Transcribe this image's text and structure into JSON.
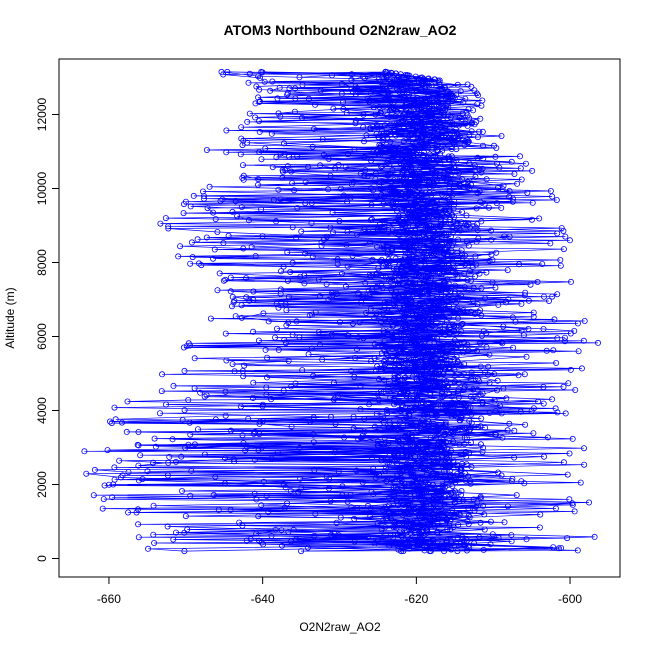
{
  "chart_data": {
    "type": "line",
    "title": "ATOM3 Northbound O2N2raw_AO2",
    "xlabel": "O2N2raw_AO2",
    "ylabel": "Altitude (m)",
    "xlim": [
      -666.5,
      -593.5
    ],
    "ylim": [
      -500,
      13500
    ],
    "x_ticks": [
      -660,
      -640,
      -620,
      -600
    ],
    "y_ticks": [
      0,
      2000,
      4000,
      6000,
      8000,
      10000,
      12000
    ],
    "x_tick_labels": [
      "-660",
      "-640",
      "-620",
      "-600"
    ],
    "y_tick_labels": [
      "0",
      "2000",
      "4000",
      "6000",
      "8000",
      "10000",
      "12000"
    ],
    "grid": false,
    "legend": "none",
    "series_color": "#0000ff",
    "marker": "open-circle",
    "envelope": [
      {
        "y": 200,
        "x_min": -655,
        "x_max": -596
      },
      {
        "y": 1000,
        "x_min": -660,
        "x_max": -597
      },
      {
        "y": 2200,
        "x_min": -664,
        "x_max": -598
      },
      {
        "y": 3300,
        "x_min": -664,
        "x_max": -598
      },
      {
        "y": 4000,
        "x_min": -660,
        "x_max": -600
      },
      {
        "y": 5000,
        "x_min": -654,
        "x_max": -598
      },
      {
        "y": 6000,
        "x_min": -649,
        "x_max": -596
      },
      {
        "y": 7000,
        "x_min": -646,
        "x_max": -600
      },
      {
        "y": 8500,
        "x_min": -654,
        "x_max": -599
      },
      {
        "y": 9700,
        "x_min": -653,
        "x_max": -601
      },
      {
        "y": 10500,
        "x_min": -642,
        "x_max": -603
      },
      {
        "y": 11100,
        "x_min": -648,
        "x_max": -608
      },
      {
        "y": 12000,
        "x_min": -642,
        "x_max": -610
      },
      {
        "y": 12800,
        "x_min": -641,
        "x_max": -613
      },
      {
        "y": 13150,
        "x_min": -648,
        "x_max": -624
      }
    ],
    "dense_core": {
      "x_center": -619,
      "x_halfwidth": 12
    }
  }
}
